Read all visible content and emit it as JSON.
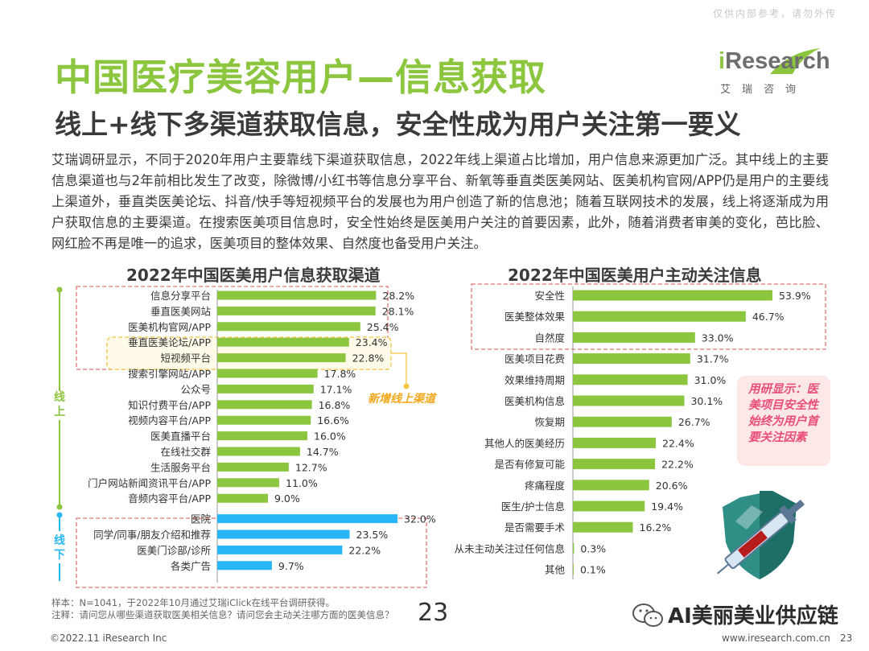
{
  "header": {
    "watermark": "仅供内部参考，请勿外传",
    "title": "中国医疗美容用户—信息获取",
    "subtitle": "线上+线下多渠道获取信息，安全性成为用户关注第一要义",
    "logo_word": "Research",
    "logo_i": "i",
    "logo_cn": "艾瑞咨询"
  },
  "body_text": "艾瑞调研显示，不同于2020年用户主要靠线下渠道获取信息，2022年线上渠道占比增加，用户信息来源更加广泛。其中线上的主要信息渠道也与2年前相比发生了改变，除微博/小红书等信息分享平台、新氧等垂直类医美网站、医美机构官网/APP仍是用户的主要线上渠道外，垂直类医美论坛、抖音/快手等短视频平台的发展也为用户创造了新的信息池；随着互联网技术的发展，线上将逐渐成为用户获取信息的主要渠道。在搜索医美项目信息时，安全性始终是医美用户关注的首要因素，此外，随着消费者审美的变化，芭比脸、网红脸不再是唯一的追求，医美项目的整体效果、自然度也备受用户关注。",
  "annotations": {
    "online_label": "线上",
    "offline_label": "线下",
    "new_channel_tag": "新增线上渠道",
    "callout": "用研显示：医美项目安全性始终为用户首要关注因素"
  },
  "footer": {
    "sample": "样本：N=1041，于2022年10月通过艾瑞iClick在线平台调研获得。",
    "note": "注释：请问您从哪些渠道获取医美相关信息？请问您会主动关注哪方面的医美信息？",
    "page_big": "23",
    "copyright": "©2022.11 iResearch Inc",
    "url": "www.iresearch.com.cn",
    "page": "23",
    "wechat": "AI美丽美业供应链"
  },
  "colors": {
    "green": "#8cc63f",
    "blue": "#29b6f6",
    "red_dash": "#e57373",
    "yellow": "#f4c542",
    "callout_text": "#e94e77"
  },
  "chart_data": [
    {
      "type": "bar",
      "orientation": "horizontal",
      "title": "2022年中国医美用户信息获取渠道",
      "categories": [
        "信息分享平台",
        "垂直医美网站",
        "医美机构官网/APP",
        "垂直医美论坛/APP",
        "短视频平台",
        "搜索引擎网站/APP",
        "公众号",
        "知识付费平台/APP",
        "视频内容平台/APP",
        "医美直播平台",
        "在线社交群",
        "生活服务平台",
        "门户网站新闻资讯平台/APP",
        "音频内容平台/APP",
        "医院",
        "同学/同事/朋友介绍和推荐",
        "医美门诊部/诊所",
        "各类广告"
      ],
      "values": [
        28.2,
        28.1,
        25.4,
        23.4,
        22.8,
        17.8,
        17.1,
        16.8,
        16.6,
        16.0,
        14.7,
        12.7,
        11.0,
        9.0,
        32.0,
        23.5,
        22.2,
        9.7
      ],
      "labels": [
        "28.2%",
        "28.1%",
        "25.4%",
        "23.4%",
        "22.8%",
        "17.8%",
        "17.1%",
        "16.8%",
        "16.6%",
        "16.0%",
        "14.7%",
        "12.7%",
        "11.0%",
        "9.0%",
        "32.0%",
        "23.5%",
        "22.2%",
        "9.7%"
      ],
      "groups": [
        "线上",
        "线上",
        "线上",
        "线上",
        "线上",
        "线上",
        "线上",
        "线上",
        "线上",
        "线上",
        "线上",
        "线上",
        "线上",
        "线上",
        "线下",
        "线下",
        "线下",
        "线下"
      ],
      "unit": "%"
    },
    {
      "type": "bar",
      "orientation": "horizontal",
      "title": "2022年中国医美用户主动关注信息",
      "categories": [
        "安全性",
        "医美整体效果",
        "自然度",
        "医美项目花费",
        "效果维持周期",
        "医美机构信息",
        "恢复期",
        "其他人的医美经历",
        "是否有修复可能",
        "疼痛程度",
        "医生/护士信息",
        "是否需要手术",
        "从未主动关注过任何信息",
        "其他"
      ],
      "values": [
        53.9,
        46.7,
        33.0,
        31.7,
        31.0,
        30.1,
        26.7,
        22.4,
        22.2,
        20.6,
        19.4,
        16.2,
        0.3,
        0.1
      ],
      "labels": [
        "53.9%",
        "46.7%",
        "33.0%",
        "31.7%",
        "31.0%",
        "30.1%",
        "26.7%",
        "22.4%",
        "22.2%",
        "20.6%",
        "19.4%",
        "16.2%",
        "0.3%",
        "0.1%"
      ],
      "unit": "%"
    }
  ]
}
